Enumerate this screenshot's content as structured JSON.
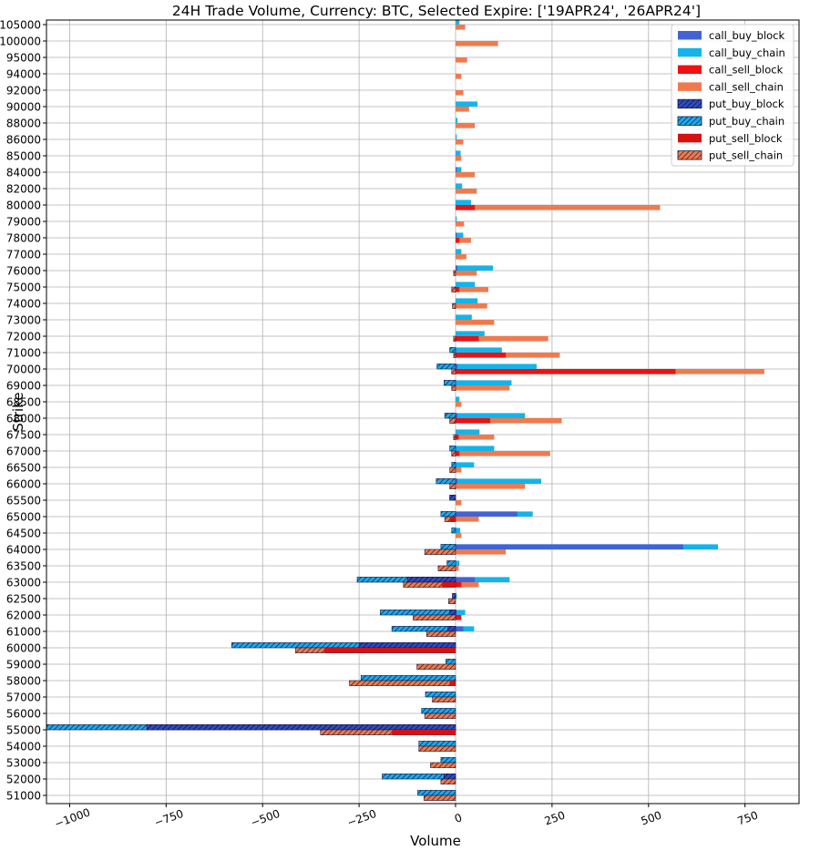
{
  "chart_data": {
    "type": "bar",
    "orientation": "horizontal",
    "title": "24H Trade Volume, Currency: BTC, Selected Expire: ['19APR24', '26APR24']",
    "xlabel": "Volume",
    "ylabel": "Strike",
    "xlim": [
      -1060,
      890
    ],
    "xticks": [
      -1000,
      -750,
      -500,
      -250,
      0,
      250,
      500,
      750
    ],
    "xtick_labels": [
      "−1000",
      "−750",
      "−500",
      "−250",
      "0",
      "250",
      "500",
      "750"
    ],
    "grid": true,
    "legend_position": "top-right",
    "categories": [
      "105000",
      "100000",
      "95000",
      "94000",
      "92000",
      "90000",
      "88000",
      "86000",
      "85000",
      "84000",
      "82000",
      "80000",
      "79000",
      "78000",
      "77000",
      "76000",
      "75000",
      "74000",
      "73000",
      "72000",
      "71000",
      "70000",
      "69000",
      "68500",
      "68000",
      "67500",
      "67000",
      "66500",
      "66000",
      "65500",
      "65000",
      "64500",
      "64000",
      "63500",
      "63000",
      "62500",
      "62000",
      "61000",
      "60000",
      "59000",
      "58000",
      "57000",
      "56000",
      "55000",
      "54000",
      "53000",
      "52000",
      "51000"
    ],
    "series": [
      {
        "name": "call_buy_block",
        "color": "#4263d6",
        "hatch": false,
        "values": [
          0,
          0,
          0,
          0,
          0,
          0,
          0,
          0,
          0,
          3,
          0,
          0,
          0,
          3,
          0,
          5,
          0,
          0,
          0,
          0,
          0,
          5,
          0,
          0,
          5,
          0,
          0,
          0,
          5,
          0,
          160,
          0,
          590,
          0,
          50,
          0,
          3,
          20,
          0,
          0,
          0,
          0,
          0,
          0,
          0,
          0,
          0,
          0
        ]
      },
      {
        "name": "call_buy_chain",
        "color": "#13b4ea",
        "hatch": false,
        "values": [
          10,
          0,
          0,
          0,
          0,
          57,
          5,
          3,
          13,
          15,
          17,
          40,
          3,
          20,
          15,
          97,
          50,
          57,
          42,
          75,
          120,
          210,
          145,
          10,
          180,
          62,
          100,
          48,
          222,
          0,
          200,
          12,
          680,
          10,
          140,
          3,
          25,
          48,
          0,
          0,
          0,
          0,
          0,
          0,
          0,
          0,
          0,
          0
        ]
      },
      {
        "name": "call_sell_block",
        "color": "#ee1111",
        "hatch": false,
        "values": [
          0,
          0,
          0,
          0,
          0,
          0,
          0,
          0,
          0,
          0,
          0,
          50,
          0,
          10,
          0,
          0,
          10,
          0,
          0,
          60,
          130,
          570,
          0,
          0,
          90,
          8,
          10,
          0,
          0,
          0,
          0,
          0,
          0,
          0,
          15,
          0,
          15,
          0,
          0,
          0,
          0,
          0,
          0,
          0,
          0,
          0,
          0,
          0
        ]
      },
      {
        "name": "call_sell_chain",
        "color": "#f07a4e",
        "hatch": false,
        "values": [
          25,
          110,
          30,
          15,
          20,
          35,
          50,
          20,
          15,
          50,
          55,
          530,
          22,
          40,
          28,
          55,
          85,
          82,
          100,
          240,
          270,
          800,
          140,
          15,
          275,
          100,
          245,
          15,
          180,
          15,
          60,
          15,
          130,
          8,
          60,
          0,
          0,
          0,
          0,
          0,
          0,
          0,
          0,
          0,
          0,
          0,
          0,
          0
        ]
      },
      {
        "name": "put_buy_block",
        "color": "#2f4cc4",
        "hatch": true,
        "values": [
          0,
          0,
          0,
          0,
          0,
          0,
          0,
          0,
          0,
          0,
          0,
          0,
          0,
          0,
          0,
          0,
          0,
          0,
          0,
          0,
          0,
          0,
          0,
          0,
          0,
          0,
          0,
          0,
          0,
          -15,
          0,
          0,
          0,
          0,
          -125,
          -8,
          -15,
          -20,
          -250,
          0,
          0,
          0,
          0,
          -800,
          0,
          0,
          -30,
          0
        ]
      },
      {
        "name": "put_buy_chain",
        "color": "#1ea8f0",
        "hatch": true,
        "values": [
          0,
          0,
          0,
          0,
          0,
          0,
          0,
          0,
          0,
          0,
          0,
          0,
          0,
          0,
          0,
          0,
          0,
          0,
          0,
          0,
          -15,
          -48,
          -30,
          0,
          -28,
          0,
          -15,
          -10,
          -50,
          -15,
          -38,
          -10,
          -38,
          -22,
          -255,
          -8,
          -195,
          -165,
          -580,
          -25,
          -245,
          -78,
          -88,
          -1060,
          -95,
          -38,
          -190,
          -98
        ]
      },
      {
        "name": "put_sell_block",
        "color": "#d81010",
        "hatch": false,
        "values": [
          0,
          0,
          0,
          0,
          0,
          0,
          0,
          0,
          0,
          0,
          0,
          0,
          0,
          0,
          0,
          0,
          0,
          0,
          0,
          0,
          0,
          0,
          0,
          0,
          0,
          0,
          0,
          0,
          0,
          0,
          -15,
          0,
          0,
          0,
          -35,
          0,
          0,
          0,
          -340,
          0,
          -15,
          0,
          0,
          -165,
          0,
          0,
          0,
          0
        ]
      },
      {
        "name": "put_sell_chain",
        "color": "#f07a4e",
        "hatch": true,
        "values": [
          0,
          0,
          0,
          0,
          0,
          0,
          0,
          0,
          0,
          0,
          0,
          0,
          0,
          0,
          0,
          -5,
          -10,
          -8,
          0,
          -5,
          -5,
          -10,
          -10,
          0,
          -15,
          -5,
          -10,
          -15,
          -15,
          0,
          -28,
          0,
          -80,
          -45,
          -135,
          -18,
          -110,
          -75,
          -415,
          -100,
          -275,
          -60,
          -80,
          -350,
          -95,
          -65,
          -38,
          -82
        ]
      }
    ]
  }
}
